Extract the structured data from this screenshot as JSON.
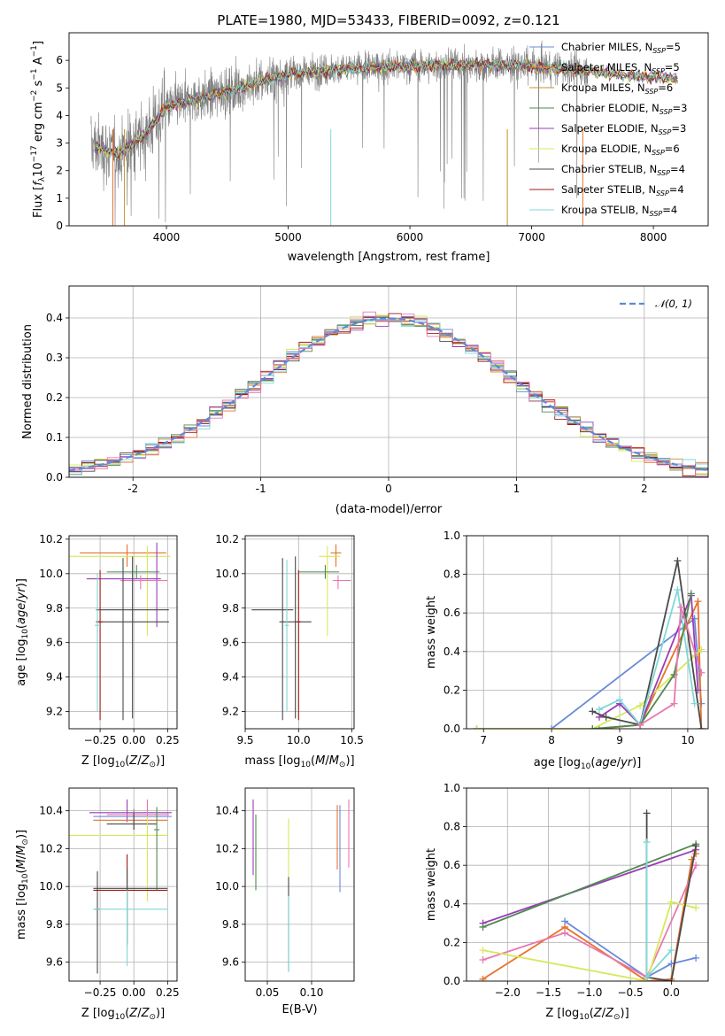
{
  "colors": {
    "Chabrier MILES": "#6a8ad8",
    "Salpeter MILES": "#e8722a",
    "Kroupa MILES": "#c4922a",
    "Chabrier ELODIE": "#4f8a4f",
    "Salpeter ELODIE": "#9a3db8",
    "Kroupa ELODIE": "#d8e85a",
    "Chabrier STELIB": "#4a4a4a",
    "Salpeter STELIB": "#a01818",
    "Kroupa STELIB": "#7fd8d8",
    "extra_pink": "#e878b0",
    "normal_curve": "#5b8bd8",
    "grid": "#b0b0b0"
  },
  "chart_data": [
    {
      "id": "spectrum",
      "type": "line",
      "title": "PLATE=1980, MJD=53433, FIBERID=0092, z=0.121",
      "xlabel": "wavelength [Angstrom, rest frame]",
      "ylabel": "Flux [fλ 10^-17 erg cm^-2 s^-1 A^-1]",
      "xlim": [
        3200,
        8450
      ],
      "ylim": [
        0,
        7
      ],
      "xticks": [
        4000,
        5000,
        6000,
        7000,
        8000
      ],
      "yticks": [
        0,
        1,
        2,
        3,
        4,
        5,
        6
      ],
      "grid": false,
      "legend_position": "right",
      "legend": [
        {
          "name": "Chabrier MILES",
          "nssp": "5"
        },
        {
          "name": "Salpeter MILES",
          "nssp": "5"
        },
        {
          "name": "Kroupa MILES",
          "nssp": "6"
        },
        {
          "name": "Chabrier ELODIE",
          "nssp": "3"
        },
        {
          "name": "Salpeter ELODIE",
          "nssp": "3"
        },
        {
          "name": "Kroupa ELODIE",
          "nssp": "6"
        },
        {
          "name": "Chabrier STELIB",
          "nssp": "4"
        },
        {
          "name": "Salpeter STELIB",
          "nssp": "4"
        },
        {
          "name": "Kroupa STELIB",
          "nssp": "4"
        }
      ],
      "continuum": [
        [
          3400,
          2.9
        ],
        [
          3600,
          2.6
        ],
        [
          3800,
          3.2
        ],
        [
          4000,
          4.3
        ],
        [
          4500,
          4.9
        ],
        [
          5000,
          5.5
        ],
        [
          5500,
          5.7
        ],
        [
          6000,
          5.8
        ],
        [
          6500,
          5.85
        ],
        [
          7000,
          5.8
        ],
        [
          7500,
          5.6
        ],
        [
          7900,
          5.4
        ],
        [
          8200,
          5.35
        ]
      ],
      "model_range": [
        3400,
        8200
      ],
      "data_range": [
        3380,
        7460
      ]
    },
    {
      "id": "residuals",
      "type": "histogram",
      "xlabel": "(data-model)/error",
      "ylabel": "Normed distribution",
      "xlim": [
        -2.5,
        2.5
      ],
      "ylim": [
        0,
        0.48
      ],
      "xticks": [
        -2,
        -1,
        0,
        1,
        2
      ],
      "yticks": [
        0.0,
        0.1,
        0.2,
        0.3,
        0.4
      ],
      "grid": true,
      "bin_width": 0.1,
      "legend_position": "top-right",
      "curve_label": "𝒩(0, 1)"
    },
    {
      "id": "age_vs_Z",
      "type": "errorbar",
      "xlabel": "Z [log10(Z/Z⊙)]",
      "ylabel": "age [log10(age/yr)]",
      "xlim": [
        -0.48,
        0.32
      ],
      "ylim": [
        9.1,
        10.22
      ],
      "xticks": [
        -0.25,
        0.0,
        0.25
      ],
      "xticklabels": [
        "−0.25",
        "0.00",
        "0.25"
      ],
      "yticks": [
        9.2,
        9.4,
        9.6,
        9.8,
        10.0,
        10.2
      ],
      "grid": true,
      "points": [
        {
          "series": "Salpeter MILES",
          "x": -0.05,
          "xerr": [
            0.35,
            0.29
          ],
          "y": 10.12,
          "yerr": [
            0.08,
            0.05
          ]
        },
        {
          "series": "Kroupa ELODIE",
          "x": 0.1,
          "xerr": [
            0.58,
            0.17
          ],
          "y": 10.1,
          "yerr": [
            0.46,
            0.06
          ]
        },
        {
          "series": "Chabrier ELODIE",
          "x": 0.02,
          "xerr": [
            0.22,
            0.17
          ],
          "y": 10.01,
          "yerr": [
            0.04,
            0.04
          ]
        },
        {
          "series": "Salpeter ELODIE",
          "x": 0.17,
          "xerr": [
            0.52,
            0.03
          ],
          "y": 9.97,
          "yerr": [
            0.28,
            0.21
          ]
        },
        {
          "series": "extra_pink",
          "x": 0.05,
          "xerr": [
            0.15,
            0.2
          ],
          "y": 9.96,
          "yerr": [
            0.05,
            0.03
          ]
        },
        {
          "series": "Chabrier STELIB",
          "x": -0.08,
          "xerr": [
            0.2,
            0.34
          ],
          "y": 9.79,
          "yerr": [
            0.64,
            0.3
          ]
        },
        {
          "series": "Chabrier STELIB",
          "x": -0.01,
          "xerr": [
            0.27,
            0.27
          ],
          "y": 9.72,
          "yerr": [
            0.56,
            0.38
          ]
        },
        {
          "series": "Salpeter STELIB",
          "x": -0.25,
          "xerr": [
            0.03,
            0.02
          ],
          "y": 9.72,
          "yerr": [
            0.57,
            0.3
          ]
        },
        {
          "series": "Kroupa STELIB",
          "x": -0.27,
          "xerr": [
            0.02,
            0.02
          ],
          "y": 9.7,
          "yerr": [
            0.5,
            0.3
          ]
        }
      ]
    },
    {
      "id": "age_vs_mass",
      "type": "errorbar",
      "xlabel": "mass [log10(M/M⊙)]",
      "xlim": [
        9.5,
        10.52
      ],
      "ylim": [
        9.1,
        10.22
      ],
      "xticks": [
        9.5,
        10.0,
        10.5
      ],
      "xticklabels": [
        "9.5",
        "10.0",
        "10.5"
      ],
      "yticks": [
        9.2,
        9.4,
        9.6,
        9.8,
        10.0,
        10.2
      ],
      "grid": true,
      "points": [
        {
          "series": "Salpeter MILES",
          "x": 10.35,
          "xerr": [
            0.05,
            0.05
          ],
          "y": 10.12,
          "yerr": [
            0.08,
            0.05
          ]
        },
        {
          "series": "Kroupa ELODIE",
          "x": 10.27,
          "xerr": [
            0.08,
            0.12
          ],
          "y": 10.1,
          "yerr": [
            0.46,
            0.06
          ]
        },
        {
          "series": "Chabrier ELODIE",
          "x": 10.25,
          "xerr": [
            0.25,
            0.13
          ],
          "y": 10.01,
          "yerr": [
            0.04,
            0.04
          ]
        },
        {
          "series": "extra_pink",
          "x": 10.37,
          "xerr": [
            0.05,
            0.12
          ],
          "y": 9.96,
          "yerr": [
            0.05,
            0.03
          ]
        },
        {
          "series": "Chabrier STELIB",
          "x": 9.85,
          "xerr": [
            0.29,
            0.1
          ],
          "y": 9.79,
          "yerr": [
            0.64,
            0.3
          ]
        },
        {
          "series": "Chabrier STELIB",
          "x": 9.97,
          "xerr": [
            0.15,
            0.15
          ],
          "y": 9.72,
          "yerr": [
            0.56,
            0.38
          ]
        },
        {
          "series": "Salpeter STELIB",
          "x": 10.0,
          "xerr": [
            0.02,
            0.02
          ],
          "y": 9.72,
          "yerr": [
            0.57,
            0.3
          ]
        },
        {
          "series": "Kroupa STELIB",
          "x": 9.89,
          "xerr": [
            0.02,
            0.02
          ],
          "y": 9.7,
          "yerr": [
            0.5,
            0.38
          ]
        }
      ]
    },
    {
      "id": "weight_vs_age",
      "type": "line",
      "xlabel": "age [log10(age/yr)]",
      "ylabel": "mass weight",
      "xlim": [
        6.75,
        10.3
      ],
      "ylim": [
        0,
        1.0
      ],
      "xticks": [
        7,
        8,
        9,
        10
      ],
      "yticks": [
        0.0,
        0.2,
        0.4,
        0.6,
        0.8,
        1.0
      ],
      "grid": true,
      "series": [
        {
          "name": "Chabrier MILES",
          "x": [
            6.9,
            8.0,
            10.1,
            10.2
          ],
          "y": [
            0.0,
            0.0,
            0.57,
            0.13
          ]
        },
        {
          "name": "Salpeter MILES",
          "x": [
            6.9,
            8.7,
            9.3,
            10.15,
            10.2
          ],
          "y": [
            0.0,
            0.0,
            0.02,
            0.66,
            0.0
          ]
        },
        {
          "name": "Kroupa ELODIE",
          "x": [
            6.9,
            8.6,
            9.3,
            10.1,
            10.2
          ],
          "y": [
            0.0,
            0.0,
            0.12,
            0.38,
            0.41
          ]
        },
        {
          "name": "Salpeter ELODIE",
          "x": [
            8.7,
            9.0,
            9.3,
            10.05,
            10.15
          ],
          "y": [
            0.06,
            0.13,
            0.02,
            0.69,
            0.2
          ]
        },
        {
          "name": "Chabrier STELIB",
          "x": [
            8.6,
            8.8,
            9.3,
            9.85,
            10.2
          ],
          "y": [
            0.09,
            0.06,
            0.02,
            0.87,
            0.0
          ]
        },
        {
          "name": "Kroupa STELIB",
          "x": [
            8.7,
            9.0,
            9.3,
            9.85,
            10.1
          ],
          "y": [
            0.1,
            0.15,
            0.02,
            0.72,
            0.13
          ]
        },
        {
          "name": "Chabrier ELODIE",
          "x": [
            8.6,
            9.3,
            9.8,
            10.05
          ],
          "y": [
            0.0,
            0.02,
            0.28,
            0.7
          ]
        },
        {
          "name": "extra_pink",
          "x": [
            9.3,
            9.8,
            9.9,
            10.2
          ],
          "y": [
            0.02,
            0.13,
            0.63,
            0.29
          ]
        }
      ]
    },
    {
      "id": "mass_vs_Z",
      "type": "errorbar",
      "xlabel": "Z [log10(Z/Z⊙)]",
      "ylabel": "mass [log10(M/M⊙)]",
      "xlim": [
        -0.48,
        0.32
      ],
      "ylim": [
        9.5,
        10.52
      ],
      "xticks": [
        -0.25,
        0.0,
        0.25
      ],
      "xticklabels": [
        "−0.25",
        "0.00",
        "0.25"
      ],
      "yticks": [
        9.6,
        9.8,
        10.0,
        10.2,
        10.4
      ],
      "grid": true,
      "points": [
        {
          "series": "Salpeter ELODIE",
          "x": -0.05,
          "xerr": [
            0.28,
            0.33
          ],
          "y": 10.39,
          "yerr": [
            0.05,
            0.07
          ]
        },
        {
          "series": "extra_pink",
          "x": 0.1,
          "xerr": [
            0.3,
            0.16
          ],
          "y": 10.38,
          "yerr": [
            0.05,
            0.08
          ]
        },
        {
          "series": "Chabrier MILES",
          "x": 0.0,
          "xerr": [
            0.3,
            0.28
          ],
          "y": 10.37,
          "yerr": [
            0.04,
            0.04
          ]
        },
        {
          "series": "Salpeter MILES",
          "x": 0.0,
          "xerr": [
            0.3,
            0.25
          ],
          "y": 10.35,
          "yerr": [
            0.05,
            0.05
          ]
        },
        {
          "series": "Chabrier STELIB",
          "x": 0.0,
          "xerr": [
            0.2,
            0.17
          ],
          "y": 10.33,
          "yerr": [
            0.03,
            0.06
          ]
        },
        {
          "series": "Kroupa ELODIE",
          "x": 0.1,
          "xerr": [
            0.58,
            0.15
          ],
          "y": 10.27,
          "yerr": [
            0.35,
            0.1
          ]
        },
        {
          "series": "Chabrier ELODIE",
          "x": 0.17,
          "xerr": [
            0.02,
            0.02
          ],
          "y": 10.3,
          "yerr": [
            0.32,
            0.12
          ]
        },
        {
          "series": "Chabrier STELIB",
          "x": -0.27,
          "xerr": [
            0.02,
            0.02
          ],
          "y": 9.88,
          "yerr": [
            0.34,
            0.2
          ]
        },
        {
          "series": "Salpeter STELIB",
          "x": -0.05,
          "xerr": [
            0.25,
            0.3
          ],
          "y": 9.98,
          "yerr": [
            0.28,
            0.19
          ]
        },
        {
          "series": "Chabrier STELIB",
          "x": -0.05,
          "xerr": [
            0.25,
            0.3
          ],
          "y": 9.99,
          "yerr": [
            0.3,
            0.1
          ]
        },
        {
          "series": "Kroupa STELIB",
          "x": -0.05,
          "xerr": [
            0.25,
            0.3
          ],
          "y": 9.88,
          "yerr": [
            0.3,
            0.1
          ]
        }
      ]
    },
    {
      "id": "mass_vs_ebv",
      "type": "errorbar",
      "xlabel": "E(B-V)",
      "xlim": [
        0.025,
        0.148
      ],
      "ylim": [
        9.5,
        10.52
      ],
      "xticks": [
        0.05,
        0.1
      ],
      "xticklabels": [
        "0.05",
        "0.10"
      ],
      "yticks": [
        9.6,
        9.8,
        10.0,
        10.2,
        10.4
      ],
      "grid": true,
      "points": [
        {
          "series": "Salpeter ELODIE",
          "x": 0.034,
          "y": 10.26,
          "yerr": [
            0.2,
            0.2
          ]
        },
        {
          "series": "Chabrier ELODIE",
          "x": 0.037,
          "y": 10.18,
          "yerr": [
            0.2,
            0.2
          ]
        },
        {
          "series": "Kroupa ELODIE",
          "x": 0.074,
          "y": 10.0,
          "yerr": [
            0.36,
            0.36
          ]
        },
        {
          "series": "Chabrier STELIB",
          "x": 0.074,
          "y": 9.8,
          "yerr": [
            0.25,
            0.25
          ]
        },
        {
          "series": "Kroupa STELIB",
          "x": 0.074,
          "y": 9.75,
          "yerr": [
            0.2,
            0.2
          ]
        },
        {
          "series": "Salpeter MILES",
          "x": 0.129,
          "y": 10.26,
          "yerr": [
            0.17,
            0.17
          ]
        },
        {
          "series": "Chabrier MILES",
          "x": 0.132,
          "y": 10.2,
          "yerr": [
            0.23,
            0.23
          ]
        },
        {
          "series": "extra_pink",
          "x": 0.142,
          "y": 10.28,
          "yerr": [
            0.18,
            0.18
          ]
        }
      ]
    },
    {
      "id": "weight_vs_Z",
      "type": "line",
      "xlabel": "Z [log10(Z/Z⊙)]",
      "ylabel": "mass weight",
      "xlim": [
        -2.5,
        0.45
      ],
      "ylim": [
        0,
        1.0
      ],
      "xticks": [
        -2.0,
        -1.5,
        -1.0,
        -0.5,
        0.0
      ],
      "xticklabels": [
        "−2.0",
        "−1.5",
        "−1.0",
        "−0.5",
        "0.0"
      ],
      "yticks": [
        0.0,
        0.2,
        0.4,
        0.6,
        0.8,
        1.0
      ],
      "grid": true,
      "series": [
        {
          "name": "Salpeter ELODIE",
          "x": [
            -2.3,
            0.3
          ],
          "y": [
            0.3,
            0.68
          ]
        },
        {
          "name": "Chabrier ELODIE",
          "x": [
            -2.3,
            0.3
          ],
          "y": [
            0.28,
            0.71
          ]
        },
        {
          "name": "Salpeter MILES",
          "x": [
            -2.3,
            -1.3,
            -0.3,
            0.0,
            0.25,
            0.3
          ],
          "y": [
            0.01,
            0.28,
            0.0,
            0.01,
            0.63,
            0.66
          ]
        },
        {
          "name": "Chabrier MILES",
          "x": [
            -1.3,
            -0.3,
            0.0,
            0.3
          ],
          "y": [
            0.31,
            0.02,
            0.09,
            0.12
          ]
        },
        {
          "name": "extra_pink",
          "x": [
            -2.3,
            -1.3,
            -0.3,
            0.3
          ],
          "y": [
            0.11,
            0.25,
            0.02,
            0.6
          ]
        },
        {
          "name": "Kroupa ELODIE",
          "x": [
            -2.3,
            -0.3,
            0.0,
            0.3
          ],
          "y": [
            0.16,
            0.0,
            0.41,
            0.38
          ]
        },
        {
          "name": "Chabrier STELIB",
          "x": [
            -0.3,
            -0.3,
            0.0,
            0.3
          ],
          "y": [
            0.87,
            0.02,
            0.0,
            0.7
          ]
        },
        {
          "name": "Kroupa STELIB",
          "x": [
            -0.3,
            -0.3,
            0.0
          ],
          "y": [
            0.72,
            0.02,
            0.16
          ]
        }
      ]
    }
  ]
}
